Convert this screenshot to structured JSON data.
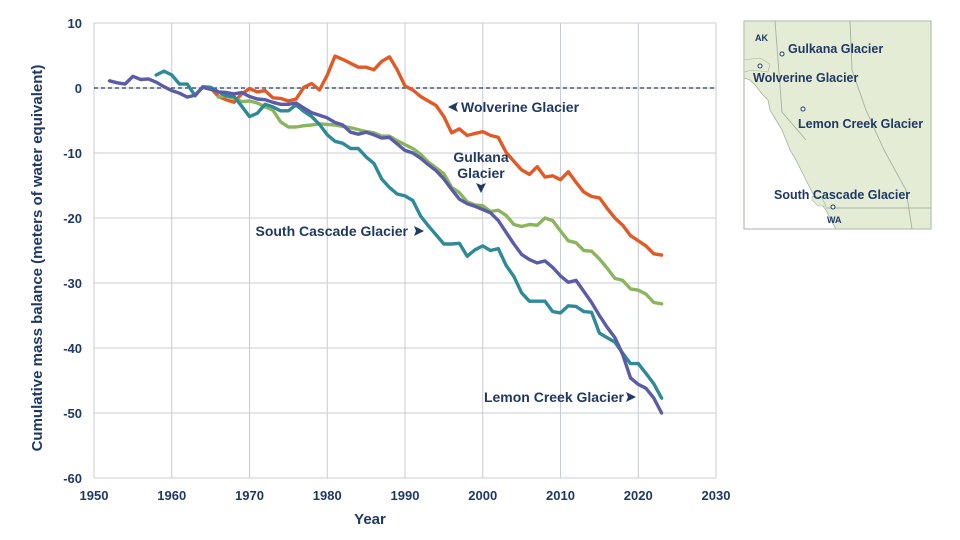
{
  "chart_data": {
    "type": "line",
    "xlabel": "Year",
    "ylabel": "Cumulative mass balance (meters of water equivalent)",
    "xlim": [
      1950,
      2030
    ],
    "ylim": [
      -60,
      10
    ],
    "xticks": [
      "1950",
      "1960",
      "1970",
      "1980",
      "1990",
      "2000",
      "2010",
      "2020",
      "2030"
    ],
    "yticks": [
      "10",
      "0",
      "-10",
      "-20",
      "-30",
      "-40",
      "-50",
      "-60"
    ],
    "grid": true,
    "zero_line": "dashed",
    "series": [
      {
        "name": "Wolverine Glacier",
        "label": "Wolverine Glacier",
        "color": "#e15a26",
        "x": [
          1965,
          1966,
          1967,
          1968,
          1969,
          1970,
          1971,
          1972,
          1973,
          1974,
          1975,
          1976,
          1977,
          1978,
          1979,
          1980,
          1981,
          1982,
          1983,
          1984,
          1985,
          1986,
          1987,
          1988,
          1989,
          1990,
          1991,
          1992,
          1993,
          1994,
          1995,
          1996,
          1997,
          1998,
          1999,
          2000,
          2001,
          2002,
          2003,
          2004,
          2005,
          2006,
          2007,
          2008,
          2009,
          2010,
          2011,
          2012,
          2013,
          2014,
          2015,
          2016,
          2017,
          2018,
          2019,
          2020,
          2021,
          2022,
          2023
        ],
        "y": [
          0.0,
          -1.3,
          -1.8,
          -2.2,
          -0.9,
          -0.1,
          -0.6,
          -0.4,
          -1.5,
          -1.6,
          -2.0,
          -1.7,
          0.1,
          0.7,
          -0.3,
          2.0,
          4.9,
          4.4,
          3.8,
          3.2,
          3.2,
          2.8,
          4.1,
          4.8,
          2.8,
          0.3,
          -0.3,
          -1.3,
          -2.0,
          -2.7,
          -4.4,
          -6.9,
          -6.3,
          -7.3,
          -7.0,
          -6.7,
          -7.3,
          -7.6,
          -9.9,
          -11.3,
          -12.6,
          -13.3,
          -12.1,
          -13.7,
          -13.5,
          -14.1,
          -12.9,
          -14.5,
          -16.0,
          -16.7,
          -16.9,
          -18.5,
          -20.0,
          -21.1,
          -22.7,
          -23.5,
          -24.3,
          -25.5,
          -25.7
        ]
      },
      {
        "name": "Gulkana Glacier",
        "label": "Gulkana Glacier",
        "color": "#8ab55e",
        "x": [
          1966,
          1967,
          1968,
          1969,
          1970,
          1971,
          1972,
          1973,
          1974,
          1975,
          1976,
          1977,
          1978,
          1979,
          1980,
          1981,
          1982,
          1983,
          1984,
          1985,
          1986,
          1987,
          1988,
          1989,
          1990,
          1991,
          1992,
          1993,
          1994,
          1995,
          1996,
          1997,
          1998,
          1999,
          2000,
          2001,
          2002,
          2003,
          2004,
          2005,
          2006,
          2007,
          2008,
          2009,
          2010,
          2011,
          2012,
          2013,
          2014,
          2015,
          2016,
          2017,
          2018,
          2019,
          2020,
          2021,
          2022,
          2023
        ],
        "y": [
          -1.4,
          -1.2,
          -1.6,
          -2.1,
          -2.0,
          -2.3,
          -2.9,
          -3.4,
          -5.2,
          -6.0,
          -6.0,
          -5.8,
          -5.7,
          -5.5,
          -5.6,
          -5.7,
          -5.9,
          -6.1,
          -6.4,
          -6.7,
          -6.9,
          -7.4,
          -7.4,
          -8.1,
          -8.7,
          -9.3,
          -10.2,
          -11.4,
          -12.3,
          -13.2,
          -15.3,
          -16.1,
          -17.5,
          -18.0,
          -18.1,
          -19.0,
          -18.8,
          -19.6,
          -21.0,
          -21.3,
          -21.0,
          -21.1,
          -20.0,
          -20.4,
          -22.0,
          -23.5,
          -23.8,
          -25.0,
          -25.1,
          -26.3,
          -27.7,
          -29.3,
          -29.6,
          -30.9,
          -31.1,
          -31.7,
          -33.0,
          -33.2
        ]
      },
      {
        "name": "South Cascade Glacier",
        "label": "South Cascade Glacier",
        "color": "#2e8a97",
        "x": [
          1958,
          1959,
          1960,
          1961,
          1962,
          1963,
          1964,
          1965,
          1966,
          1967,
          1968,
          1969,
          1970,
          1971,
          1972,
          1973,
          1974,
          1975,
          1976,
          1977,
          1978,
          1979,
          1980,
          1981,
          1982,
          1983,
          1984,
          1985,
          1986,
          1987,
          1988,
          1989,
          1990,
          1991,
          1992,
          1993,
          1994,
          1995,
          1996,
          1997,
          1998,
          1999,
          2000,
          2001,
          2002,
          2003,
          2004,
          2005,
          2006,
          2007,
          2008,
          2009,
          2010,
          2011,
          2012,
          2013,
          2014,
          2015,
          2016,
          2017,
          2018,
          2019,
          2020,
          2021,
          2022,
          2023
        ],
        "y": [
          2.0,
          2.6,
          2.0,
          0.6,
          0.6,
          -1.2,
          0.2,
          0.1,
          -0.6,
          -1.2,
          -1.3,
          -2.8,
          -4.4,
          -3.9,
          -2.5,
          -2.9,
          -3.5,
          -3.5,
          -2.6,
          -3.6,
          -4.4,
          -5.6,
          -7.2,
          -8.2,
          -8.5,
          -9.3,
          -9.3,
          -10.6,
          -11.6,
          -14.0,
          -15.3,
          -16.3,
          -16.6,
          -17.3,
          -19.7,
          -21.2,
          -22.6,
          -24.0,
          -24.0,
          -23.9,
          -25.9,
          -24.9,
          -24.3,
          -25.0,
          -24.7,
          -27.3,
          -29.0,
          -31.5,
          -32.8,
          -32.8,
          -32.8,
          -34.4,
          -34.6,
          -33.5,
          -33.6,
          -34.4,
          -34.5,
          -37.7,
          -38.4,
          -39.1,
          -40.8,
          -42.4,
          -42.4,
          -43.9,
          -45.5,
          -47.7
        ]
      },
      {
        "name": "Lemon Creek Glacier",
        "label": "Lemon Creek Glacier",
        "color": "#5b5ca8",
        "x": [
          1952,
          1953,
          1954,
          1955,
          1956,
          1957,
          1958,
          1959,
          1960,
          1961,
          1962,
          1963,
          1964,
          1965,
          1966,
          1967,
          1968,
          1969,
          1970,
          1971,
          1972,
          1973,
          1974,
          1975,
          1976,
          1977,
          1978,
          1979,
          1980,
          1981,
          1982,
          1983,
          1984,
          1985,
          1986,
          1987,
          1988,
          1989,
          1990,
          1991,
          1992,
          1993,
          1994,
          1995,
          1996,
          1997,
          1998,
          1999,
          2000,
          2001,
          2002,
          2003,
          2004,
          2005,
          2006,
          2007,
          2008,
          2009,
          2010,
          2011,
          2012,
          2013,
          2014,
          2015,
          2016,
          2017,
          2018,
          2019,
          2020,
          2021,
          2022,
          2023
        ],
        "y": [
          1.1,
          0.8,
          0.6,
          1.8,
          1.3,
          1.4,
          0.9,
          0.2,
          -0.4,
          -0.8,
          -1.4,
          -1.1,
          0.1,
          -0.2,
          -0.6,
          -0.7,
          -0.9,
          -0.7,
          -1.3,
          -1.7,
          -1.8,
          -2.2,
          -2.5,
          -2.5,
          -2.3,
          -3.1,
          -3.8,
          -4.2,
          -4.6,
          -5.3,
          -5.7,
          -6.8,
          -7.1,
          -6.8,
          -7.2,
          -7.7,
          -7.6,
          -8.6,
          -9.6,
          -10.0,
          -10.8,
          -11.8,
          -12.7,
          -14.0,
          -15.6,
          -17.1,
          -17.8,
          -18.2,
          -18.7,
          -19.2,
          -20.4,
          -22.2,
          -24.0,
          -25.6,
          -26.4,
          -26.9,
          -26.6,
          -27.6,
          -28.9,
          -29.9,
          -29.6,
          -31.3,
          -33.0,
          -35.0,
          -36.8,
          -38.4,
          -41.0,
          -44.6,
          -45.6,
          -46.2,
          -47.7,
          -50.0
        ]
      }
    ],
    "annotations": [
      {
        "text": "Wolverine Glacier",
        "arrow": "left"
      },
      {
        "text": "Gulkana",
        "text2": "Glacier",
        "arrow": "down"
      },
      {
        "text": "South Cascade Glacier",
        "arrow": "right"
      },
      {
        "text": "Lemon Creek Glacier",
        "arrow": "right"
      }
    ]
  },
  "inset_map": {
    "state_labels": [
      "AK",
      "WA"
    ],
    "glacier_labels": [
      "Gulkana Glacier",
      "Wolverine Glacier",
      "Lemon Creek Glacier",
      "South Cascade Glacier"
    ],
    "land_color": "#e4ecd5",
    "water_color": "#ffffff",
    "border_color": "#a3b3a3"
  }
}
